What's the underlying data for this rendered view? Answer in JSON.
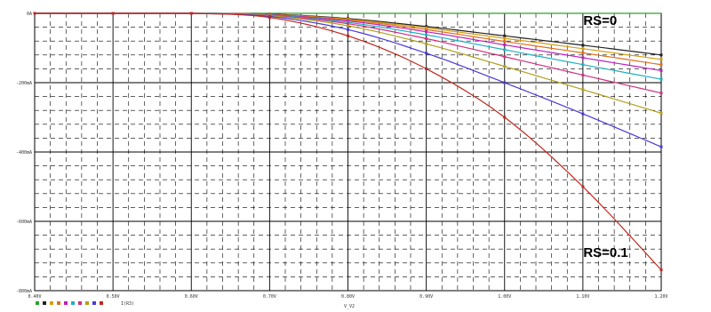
{
  "chart_data": {
    "type": "line",
    "title": "",
    "xlabel": "V_V2",
    "ylabel": "",
    "xlim": [
      0.4,
      1.2
    ],
    "ylim": [
      -0.8,
      0
    ],
    "x_ticks": [
      0.4,
      0.5,
      0.6,
      0.7,
      0.8,
      0.9,
      1.0,
      1.1,
      1.2
    ],
    "x_tick_labels": [
      "0.40V",
      "0.50V",
      "0.60V",
      "0.70V",
      "0.80V",
      "0.90V",
      "1.00V",
      "1.10V",
      "1.20V"
    ],
    "y_ticks": [
      0,
      -0.2,
      -0.4,
      -0.6,
      -0.8
    ],
    "y_tick_labels": [
      "0A",
      "-200mA",
      "-400mA",
      "-600mA",
      "-800mA"
    ],
    "grid": true,
    "annotations": [
      {
        "text": "RS=0",
        "x": 1.13,
        "y": -0.02
      },
      {
        "text": "RS=0.1",
        "x": 1.13,
        "y": -0.69
      }
    ],
    "legend_text": "I(R3)",
    "series": [
      {
        "color": "#2ca02c",
        "x": [
          0.4,
          1.2
        ],
        "y": [
          0,
          0
        ]
      },
      {
        "color": "#222222",
        "x": [
          0.4,
          0.5,
          0.6,
          0.7,
          0.8,
          0.9,
          1.0,
          1.1,
          1.2
        ],
        "y": [
          0,
          0,
          0,
          -0.002,
          -0.015,
          -0.038,
          -0.065,
          -0.092,
          -0.12
        ]
      },
      {
        "color": "#d4a017",
        "x": [
          0.4,
          0.5,
          0.6,
          0.7,
          0.8,
          0.9,
          1.0,
          1.1,
          1.2
        ],
        "y": [
          0,
          0,
          0,
          -0.003,
          -0.017,
          -0.042,
          -0.072,
          -0.102,
          -0.133
        ]
      },
      {
        "color": "#e07020",
        "x": [
          0.4,
          0.5,
          0.6,
          0.7,
          0.8,
          0.9,
          1.0,
          1.1,
          1.2
        ],
        "y": [
          0,
          0,
          0,
          -0.003,
          -0.019,
          -0.047,
          -0.081,
          -0.114,
          -0.148
        ]
      },
      {
        "color": "#c020c0",
        "x": [
          0.4,
          0.5,
          0.6,
          0.7,
          0.8,
          0.9,
          1.0,
          1.1,
          1.2
        ],
        "y": [
          0,
          0,
          0,
          -0.004,
          -0.022,
          -0.053,
          -0.091,
          -0.128,
          -0.165
        ]
      },
      {
        "color": "#20b0c0",
        "x": [
          0.4,
          0.5,
          0.6,
          0.7,
          0.8,
          0.9,
          1.0,
          1.1,
          1.2
        ],
        "y": [
          0,
          0,
          0,
          -0.005,
          -0.026,
          -0.062,
          -0.105,
          -0.148,
          -0.19
        ]
      },
      {
        "color": "#d03080",
        "x": [
          0.4,
          0.5,
          0.6,
          0.7,
          0.8,
          0.9,
          1.0,
          1.1,
          1.2
        ],
        "y": [
          0,
          0,
          0,
          -0.006,
          -0.03,
          -0.073,
          -0.125,
          -0.178,
          -0.23
        ]
      },
      {
        "color": "#b0a020",
        "x": [
          0.4,
          0.5,
          0.6,
          0.7,
          0.8,
          0.9,
          1.0,
          1.1,
          1.2
        ],
        "y": [
          0,
          0,
          0,
          -0.007,
          -0.036,
          -0.088,
          -0.153,
          -0.22,
          -0.288
        ]
      },
      {
        "color": "#4a3ad8",
        "x": [
          0.4,
          0.5,
          0.6,
          0.7,
          0.8,
          0.9,
          1.0,
          1.1,
          1.2
        ],
        "y": [
          0,
          0,
          0,
          -0.009,
          -0.047,
          -0.115,
          -0.2,
          -0.29,
          -0.385
        ]
      },
      {
        "color": "#c0281e",
        "x": [
          0.4,
          0.5,
          0.6,
          0.7,
          0.8,
          0.9,
          1.0,
          1.1,
          1.2
        ],
        "y": [
          0,
          0,
          0,
          -0.012,
          -0.065,
          -0.16,
          -0.3,
          -0.5,
          -0.74
        ]
      }
    ]
  }
}
